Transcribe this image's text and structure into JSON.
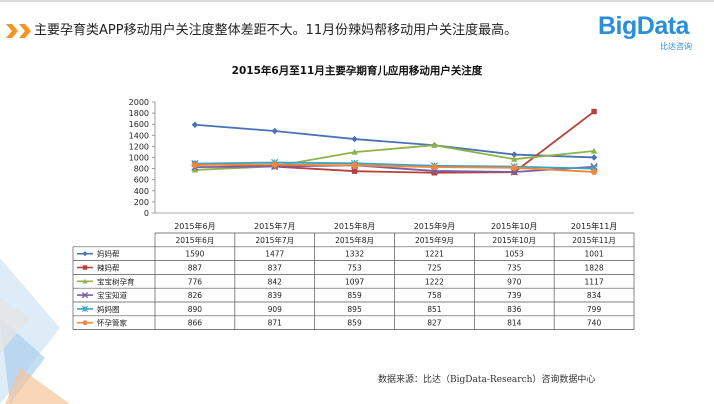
{
  "headline": "主要孕育类APP移动用户关注度整体差距不大。11月份辣妈帮移动用户关注度最高。",
  "logo": {
    "word": "BigData",
    "sub": "比达咨询"
  },
  "source": "数据来源：比达（BigData-Research）咨询数据中心",
  "colors": {
    "accent_arrows": "#f7941d",
    "logo": "#2a8fd8"
  },
  "chart_data": {
    "type": "line",
    "title": "2015年6月至11月主要孕期育儿应用移动用户关注度",
    "categories": [
      "2015年6月",
      "2015年7月",
      "2015年8月",
      "2015年9月",
      "2015年10月",
      "2015年11月"
    ],
    "ylim": [
      0,
      2000
    ],
    "yticks": [
      0,
      200,
      400,
      600,
      800,
      1000,
      1200,
      1400,
      1600,
      1800,
      2000
    ],
    "grid": false,
    "legend": "table-below",
    "series": [
      {
        "name": "妈妈帮",
        "values": [
          1590,
          1477,
          1332,
          1221,
          1053,
          1001
        ],
        "color": "#4a72b8",
        "marker": "diamond"
      },
      {
        "name": "辣妈帮",
        "values": [
          887,
          837,
          753,
          725,
          735,
          1828
        ],
        "color": "#b9413c",
        "marker": "square"
      },
      {
        "name": "宝宝树孕育",
        "values": [
          776,
          842,
          1097,
          1222,
          970,
          1117
        ],
        "color": "#8fb24a",
        "marker": "triangle"
      },
      {
        "name": "宝宝知道",
        "values": [
          826,
          839,
          859,
          758,
          739,
          834
        ],
        "color": "#7b5ea4",
        "marker": "x"
      },
      {
        "name": "妈妈圈",
        "values": [
          890,
          909,
          895,
          851,
          836,
          799
        ],
        "color": "#3ba4c4",
        "marker": "star"
      },
      {
        "name": "怀孕管家",
        "values": [
          866,
          871,
          859,
          827,
          814,
          740
        ],
        "color": "#f0883a",
        "marker": "circle"
      }
    ]
  }
}
